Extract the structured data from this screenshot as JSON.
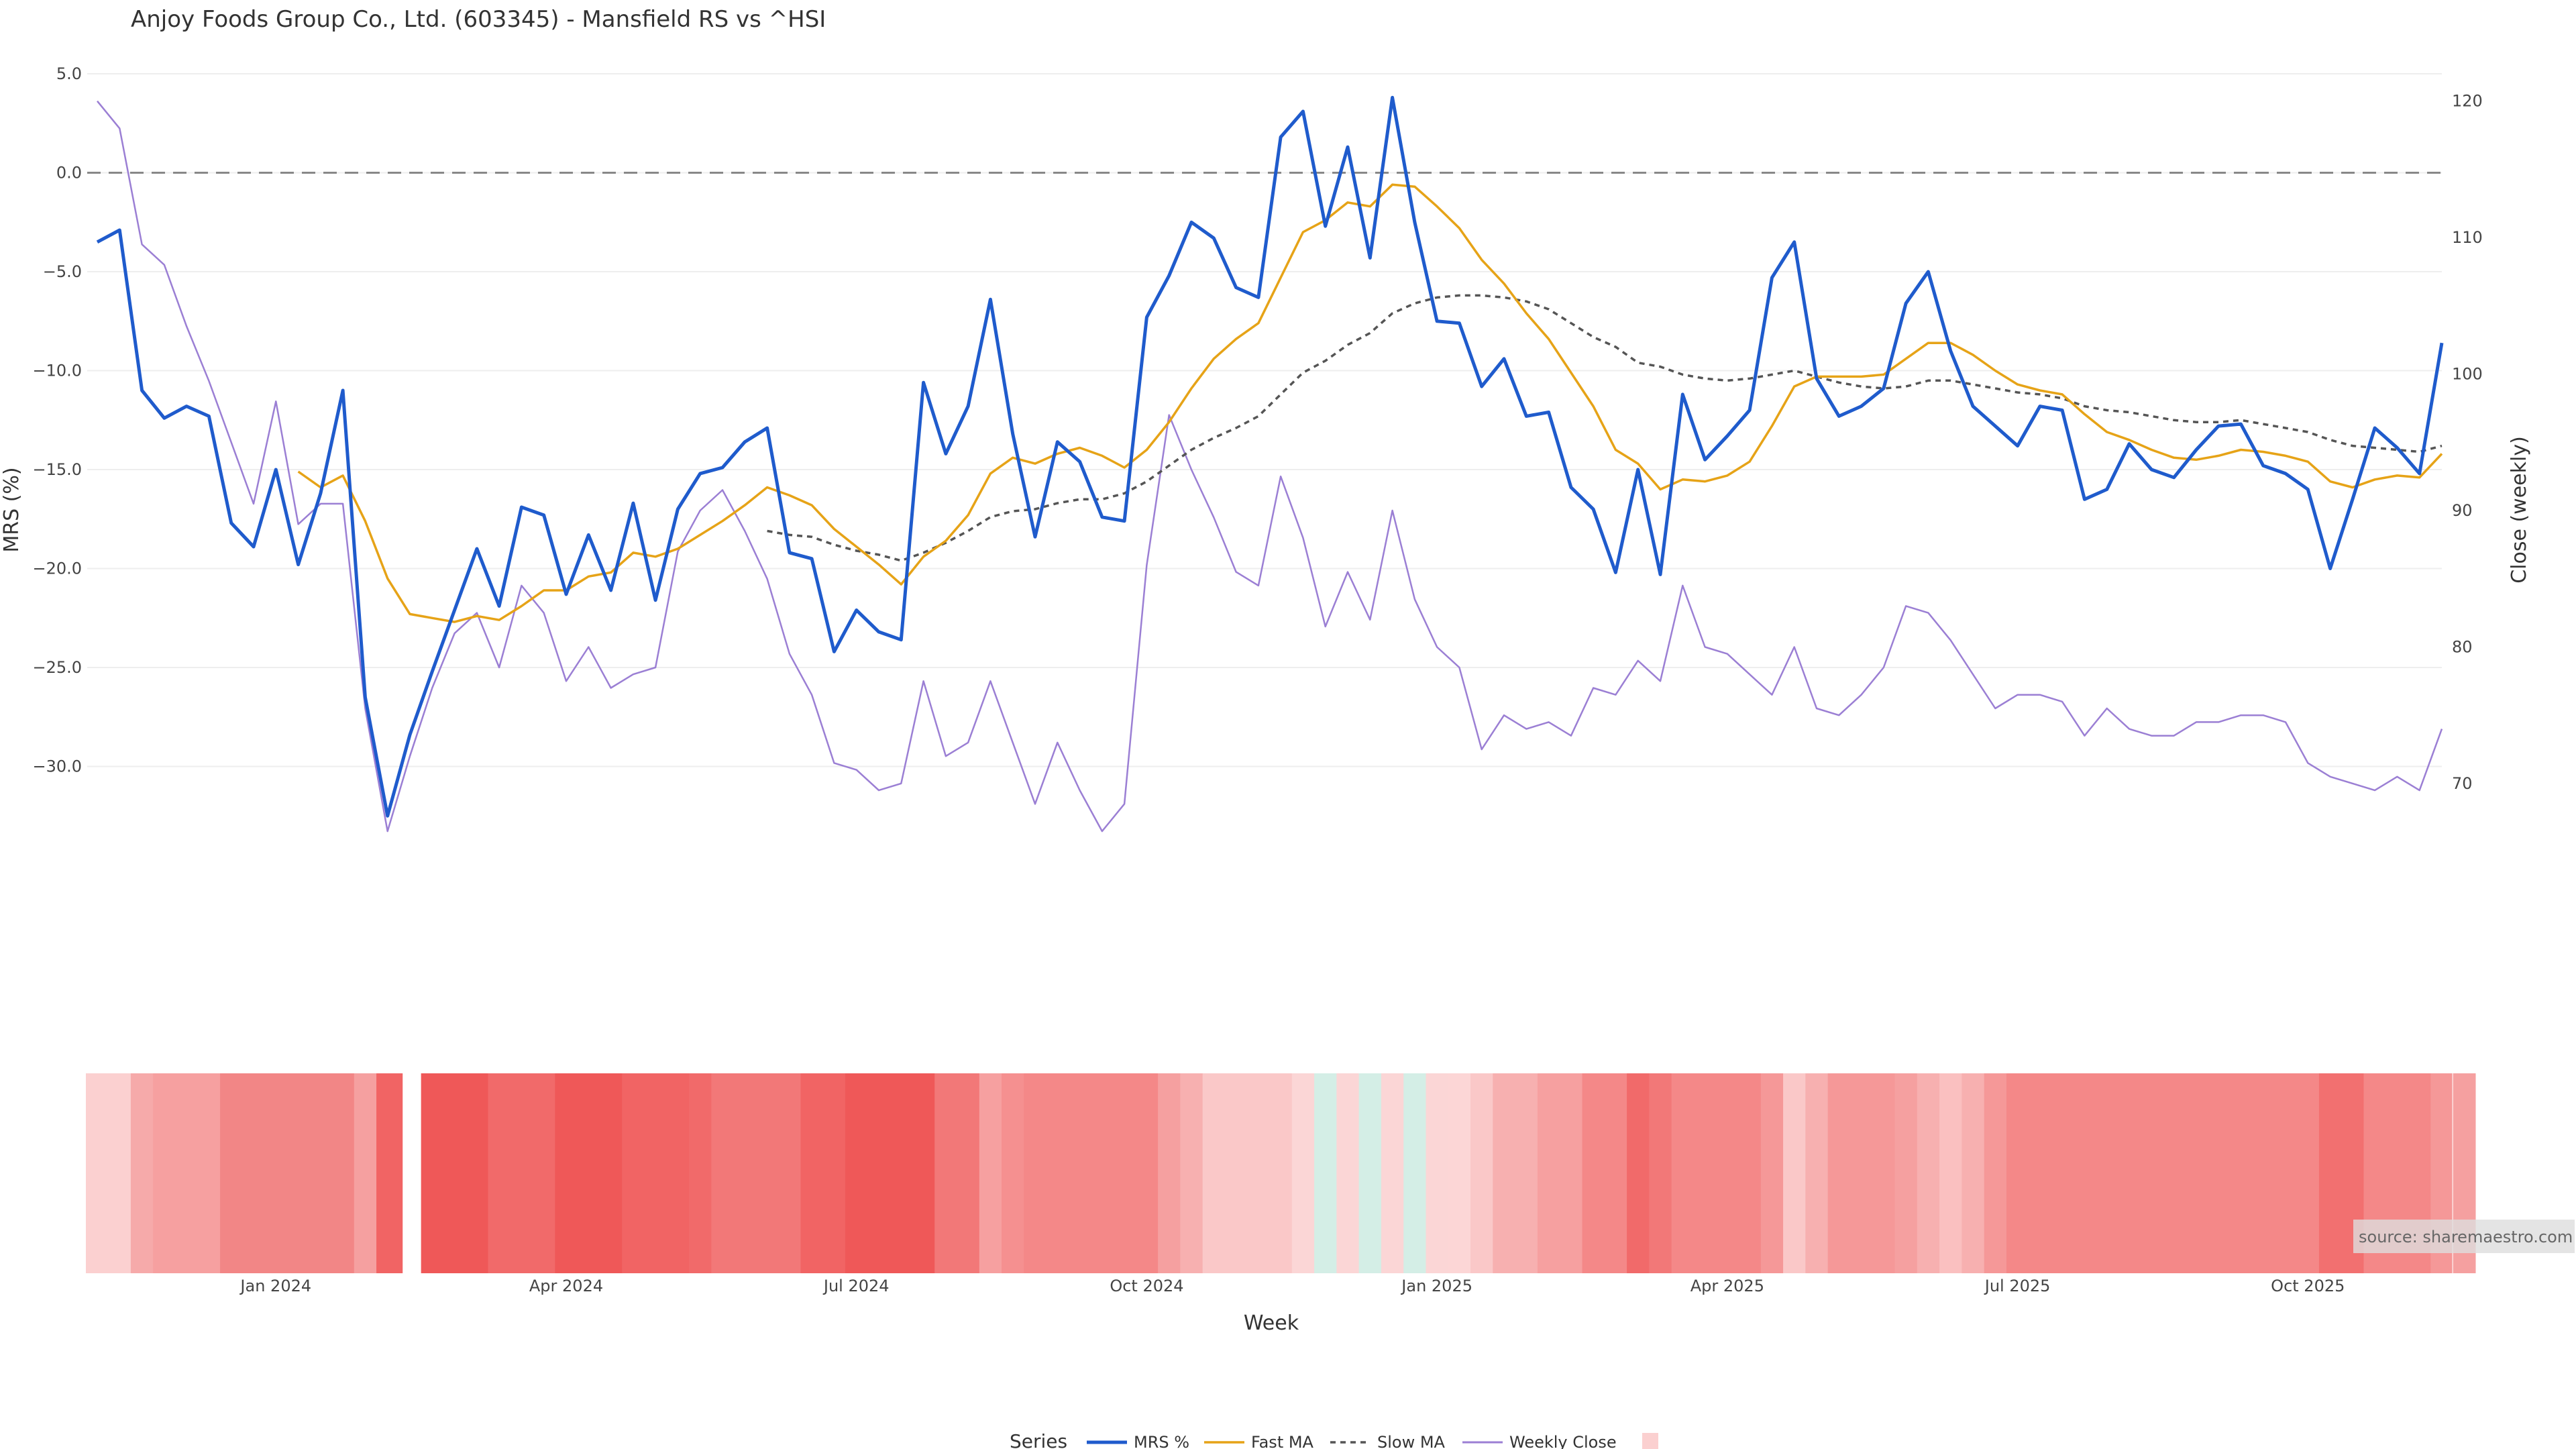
{
  "chart_data": {
    "type": "line",
    "title": "Anjoy Foods Group Co., Ltd. (603345) - Mansfield RS vs ^HSI",
    "xlabel": "Week",
    "ylabel_left": "MRS (%)",
    "ylabel_right": "Close (weekly)",
    "y_left_ticks": [
      "5.0",
      "0.0",
      "−5.0",
      "−10.0",
      "−15.0",
      "−20.0",
      "−25.0",
      "−30.0"
    ],
    "y_left_range": [
      -35,
      5
    ],
    "y_right_ticks": [
      "120",
      "110",
      "100",
      "90",
      "80",
      "70"
    ],
    "y_right_range": [
      64,
      122
    ],
    "x_tick_labels": [
      "Jan 2024",
      "Apr 2024",
      "Jul 2024",
      "Oct 2024",
      "Jan 2025",
      "Apr 2025",
      "Jul 2025",
      "Oct 2025"
    ],
    "x_ticks_week_index": [
      8,
      21,
      34,
      47,
      60,
      73,
      86,
      99
    ],
    "grid": true,
    "zero_line": true,
    "legend_title": "Series",
    "legend_position": "bottom-center",
    "source": "source: sharemaestro.com",
    "series": [
      {
        "name": "MRS %",
        "axis": "left",
        "color": "#1f5bcc",
        "style": "solid",
        "values": [
          -3.5,
          -2.9,
          -11.0,
          -12.4,
          -11.8,
          -12.3,
          -17.7,
          -18.9,
          -15.0,
          -19.8,
          -16.2,
          -11.0,
          -26.5,
          -32.5,
          -28.4,
          -25.2,
          -22.1,
          -19.0,
          -21.9,
          -16.9,
          -17.3,
          -21.3,
          -18.3,
          -21.1,
          -16.7,
          -21.6,
          -17.0,
          -15.2,
          -14.9,
          -13.6,
          -12.9,
          -19.2,
          -19.5,
          -24.2,
          -22.1,
          -23.2,
          -23.6,
          -10.6,
          -14.2,
          -11.8,
          -6.4,
          -13.2,
          -18.4,
          -13.6,
          -14.6,
          -17.4,
          -17.6,
          -7.3,
          -5.2,
          -2.5,
          -3.3,
          -5.8,
          -6.3,
          1.8,
          3.1,
          -2.7,
          1.3,
          -4.3,
          3.8,
          -2.5,
          -7.5,
          -7.6,
          -10.8,
          -9.4,
          -12.3,
          -12.1,
          -15.9,
          -17.0,
          -20.2,
          -15.0,
          -20.3,
          -11.2,
          -14.5,
          -13.3,
          -12.0,
          -5.3,
          -3.5,
          -10.4,
          -12.3,
          -11.8,
          -10.9,
          -6.6,
          -5.0,
          -9.0,
          -11.8,
          -12.8,
          -13.8,
          -11.8,
          -12.0,
          -16.5,
          -16.0,
          -13.7,
          -15.0,
          -15.4,
          -14.0,
          -12.8,
          -12.7,
          -14.8,
          -15.2,
          -16.0,
          -20.0,
          -16.5,
          -12.9,
          -13.9,
          -15.2,
          -8.6
        ]
      },
      {
        "name": "Fast MA",
        "axis": "left",
        "color": "#e6a317",
        "style": "solid",
        "values": [
          null,
          null,
          null,
          null,
          null,
          null,
          null,
          null,
          null,
          -15.1,
          -15.9,
          -15.3,
          -17.6,
          -20.5,
          -22.3,
          -22.5,
          -22.7,
          -22.4,
          -22.6,
          -21.9,
          -21.1,
          -21.1,
          -20.4,
          -20.2,
          -19.2,
          -19.4,
          -19.0,
          -18.3,
          -17.6,
          -16.8,
          -15.9,
          -16.3,
          -16.8,
          -18.0,
          -18.9,
          -19.8,
          -20.8,
          -19.4,
          -18.6,
          -17.3,
          -15.2,
          -14.4,
          -14.7,
          -14.2,
          -13.9,
          -14.3,
          -14.9,
          -14.0,
          -12.6,
          -10.9,
          -9.4,
          -8.4,
          -7.6,
          -5.3,
          -3.0,
          -2.4,
          -1.5,
          -1.7,
          -0.6,
          -0.7,
          -1.7,
          -2.8,
          -4.4,
          -5.6,
          -7.1,
          -8.4,
          -10.1,
          -11.8,
          -14.0,
          -14.7,
          -16.0,
          -15.5,
          -15.6,
          -15.3,
          -14.6,
          -12.8,
          -10.8,
          -10.3,
          -10.3,
          -10.3,
          -10.2,
          -9.4,
          -8.6,
          -8.6,
          -9.2,
          -10.0,
          -10.7,
          -11.0,
          -11.2,
          -12.2,
          -13.1,
          -13.5,
          -14.0,
          -14.4,
          -14.5,
          -14.3,
          -14.0,
          -14.1,
          -14.3,
          -14.6,
          -15.6,
          -15.9,
          -15.5,
          -15.3,
          -15.4,
          -14.2
        ]
      },
      {
        "name": "Slow MA",
        "axis": "left",
        "color": "#555555",
        "style": "dotted",
        "values": [
          null,
          null,
          null,
          null,
          null,
          null,
          null,
          null,
          null,
          null,
          null,
          null,
          null,
          null,
          null,
          null,
          null,
          null,
          null,
          null,
          null,
          null,
          null,
          null,
          null,
          null,
          null,
          null,
          null,
          null,
          -18.1,
          -18.3,
          -18.4,
          -18.8,
          -19.1,
          -19.3,
          -19.6,
          -19.2,
          -18.7,
          -18.1,
          -17.4,
          -17.1,
          -17.0,
          -16.7,
          -16.5,
          -16.5,
          -16.2,
          -15.6,
          -14.8,
          -14.0,
          -13.4,
          -12.9,
          -12.3,
          -11.2,
          -10.1,
          -9.5,
          -8.7,
          -8.1,
          -7.1,
          -6.6,
          -6.3,
          -6.2,
          -6.2,
          -6.3,
          -6.5,
          -6.9,
          -7.6,
          -8.3,
          -8.8,
          -9.6,
          -9.8,
          -10.2,
          -10.4,
          -10.5,
          -10.4,
          -10.2,
          -10.0,
          -10.3,
          -10.6,
          -10.8,
          -10.9,
          -10.8,
          -10.5,
          -10.5,
          -10.7,
          -10.9,
          -11.1,
          -11.2,
          -11.4,
          -11.8,
          -12.0,
          -12.1,
          -12.3,
          -12.5,
          -12.6,
          -12.6,
          -12.5,
          -12.7,
          -12.9,
          -13.1,
          -13.5,
          -13.8,
          -13.9,
          -14.0,
          -14.1,
          -13.8
        ]
      },
      {
        "name": "Weekly Close",
        "axis": "right",
        "color": "#9b7fd4",
        "style": "solid",
        "values": [
          120.0,
          118.0,
          109.5,
          108.0,
          103.5,
          99.5,
          95.0,
          90.5,
          98.0,
          89.0,
          90.5,
          90.5,
          75.5,
          66.5,
          72.0,
          77.0,
          81.0,
          82.5,
          78.5,
          84.5,
          82.5,
          77.5,
          80.0,
          77.0,
          78.0,
          78.5,
          87.0,
          90.0,
          91.5,
          88.5,
          85.0,
          79.5,
          76.5,
          71.5,
          71.0,
          69.5,
          70.0,
          77.5,
          72.0,
          73.0,
          77.5,
          73.0,
          68.5,
          73.0,
          69.5,
          66.5,
          68.5,
          86.0,
          97.0,
          93.0,
          89.5,
          85.5,
          84.5,
          92.5,
          88.0,
          81.5,
          85.5,
          82.0,
          90.0,
          83.5,
          80.0,
          78.5,
          72.5,
          75.0,
          74.0,
          74.5,
          73.5,
          77.0,
          76.5,
          79.0,
          77.5,
          84.5,
          80.0,
          79.5,
          78.0,
          76.5,
          80.0,
          75.5,
          75.0,
          76.5,
          78.5,
          83.0,
          82.5,
          80.5,
          78.0,
          75.5,
          76.5,
          76.5,
          76.0,
          73.5,
          75.5,
          74.0,
          73.5,
          73.5,
          74.5,
          74.5,
          75.0,
          75.0,
          74.5,
          71.5,
          70.5,
          70.0,
          69.5,
          70.5,
          69.5,
          74.0
        ]
      }
    ],
    "heatmap_strip": {
      "gap_after_index": 14,
      "colors": [
        "#fbd0d0",
        "#fbd0d0",
        "#f6aaaa",
        "#f6a0a0",
        "#f6a0a0",
        "#f6a0a0",
        "#f28686",
        "#f28686",
        "#f28686",
        "#f28686",
        "#f28686",
        "#f28686",
        "#f5a0a0",
        "#f16464",
        "#f16464",
        "#ef5858",
        "#ef5858",
        "#ef5858",
        "#f16a6a",
        "#f16a6a",
        "#f16a6a",
        "#ef5858",
        "#ef5858",
        "#ef5858",
        "#f16464",
        "#f16464",
        "#f16464",
        "#f16a6a",
        "#f27878",
        "#f27878",
        "#f27878",
        "#f27878",
        "#f16464",
        "#f16464",
        "#ef5858",
        "#ef5858",
        "#ef5858",
        "#ef5858",
        "#f27878",
        "#f27878",
        "#f6a0a0",
        "#f59090",
        "#f48888",
        "#f48888",
        "#f48888",
        "#f48888",
        "#f48888",
        "#f48888",
        "#f5a0a0",
        "#f7b0b0",
        "#fac8c8",
        "#fac8c8",
        "#fac8c8",
        "#fac8c8",
        "#fbd6d6",
        "#d4eee6",
        "#fbd6d6",
        "#d4eee6",
        "#fbd6d6",
        "#d4eee6",
        "#fbd6d6",
        "#fcd6d6",
        "#fac8c8",
        "#f7b0b0",
        "#f7b0b0",
        "#f6a0a0",
        "#f6a0a0",
        "#f48888",
        "#f48888",
        "#f16a6a",
        "#f27878",
        "#f48888",
        "#f48888",
        "#f48888",
        "#f48888",
        "#f59898",
        "#fac8c8",
        "#f7b0b0",
        "#f59898",
        "#f59898",
        "#f59898",
        "#f5a0a0",
        "#f7b0b0",
        "#fac0c0",
        "#f7b0b0",
        "#f59898",
        "#f48888",
        "#f48888",
        "#f48888",
        "#f48888",
        "#f48888",
        "#f48888",
        "#f48888",
        "#f48888",
        "#f48888",
        "#f48888",
        "#f48888",
        "#f48888",
        "#f48888",
        "#f48888",
        "#f27070",
        "#f27070",
        "#f48888",
        "#f48888",
        "#f48888",
        "#f59898",
        "#f5a0a0"
      ]
    }
  }
}
